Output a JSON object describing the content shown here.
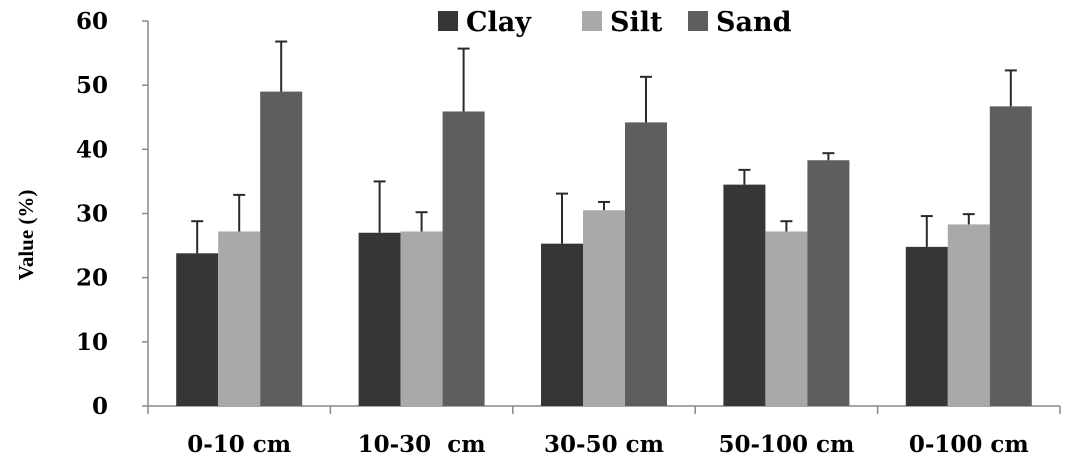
{
  "chart_data": {
    "type": "bar",
    "title": "",
    "xlabel": "",
    "ylabel": "Value (%)",
    "ylim": [
      0,
      60
    ],
    "yticks": [
      0,
      10,
      20,
      30,
      40,
      50,
      60
    ],
    "categories": [
      "0-10 cm",
      "10-30  cm",
      "30-50 cm",
      "50-100 cm",
      "0-100 cm"
    ],
    "legend_position": "top-center",
    "grid": false,
    "series": [
      {
        "name": "Clay",
        "color": "#363636",
        "values": [
          23.8,
          27.0,
          25.3,
          34.5,
          24.8
        ],
        "errors": [
          5.0,
          8.0,
          7.8,
          2.3,
          4.8
        ]
      },
      {
        "name": "Silt",
        "color": "#a9a9a9",
        "values": [
          27.2,
          27.2,
          30.5,
          27.2,
          28.3
        ],
        "errors": [
          5.7,
          3.0,
          1.3,
          1.6,
          1.6
        ]
      },
      {
        "name": "Sand",
        "color": "#5e5e5e",
        "values": [
          49.0,
          45.9,
          44.2,
          38.3,
          46.7
        ],
        "errors": [
          7.8,
          9.8,
          7.1,
          1.1,
          5.6
        ]
      }
    ]
  }
}
